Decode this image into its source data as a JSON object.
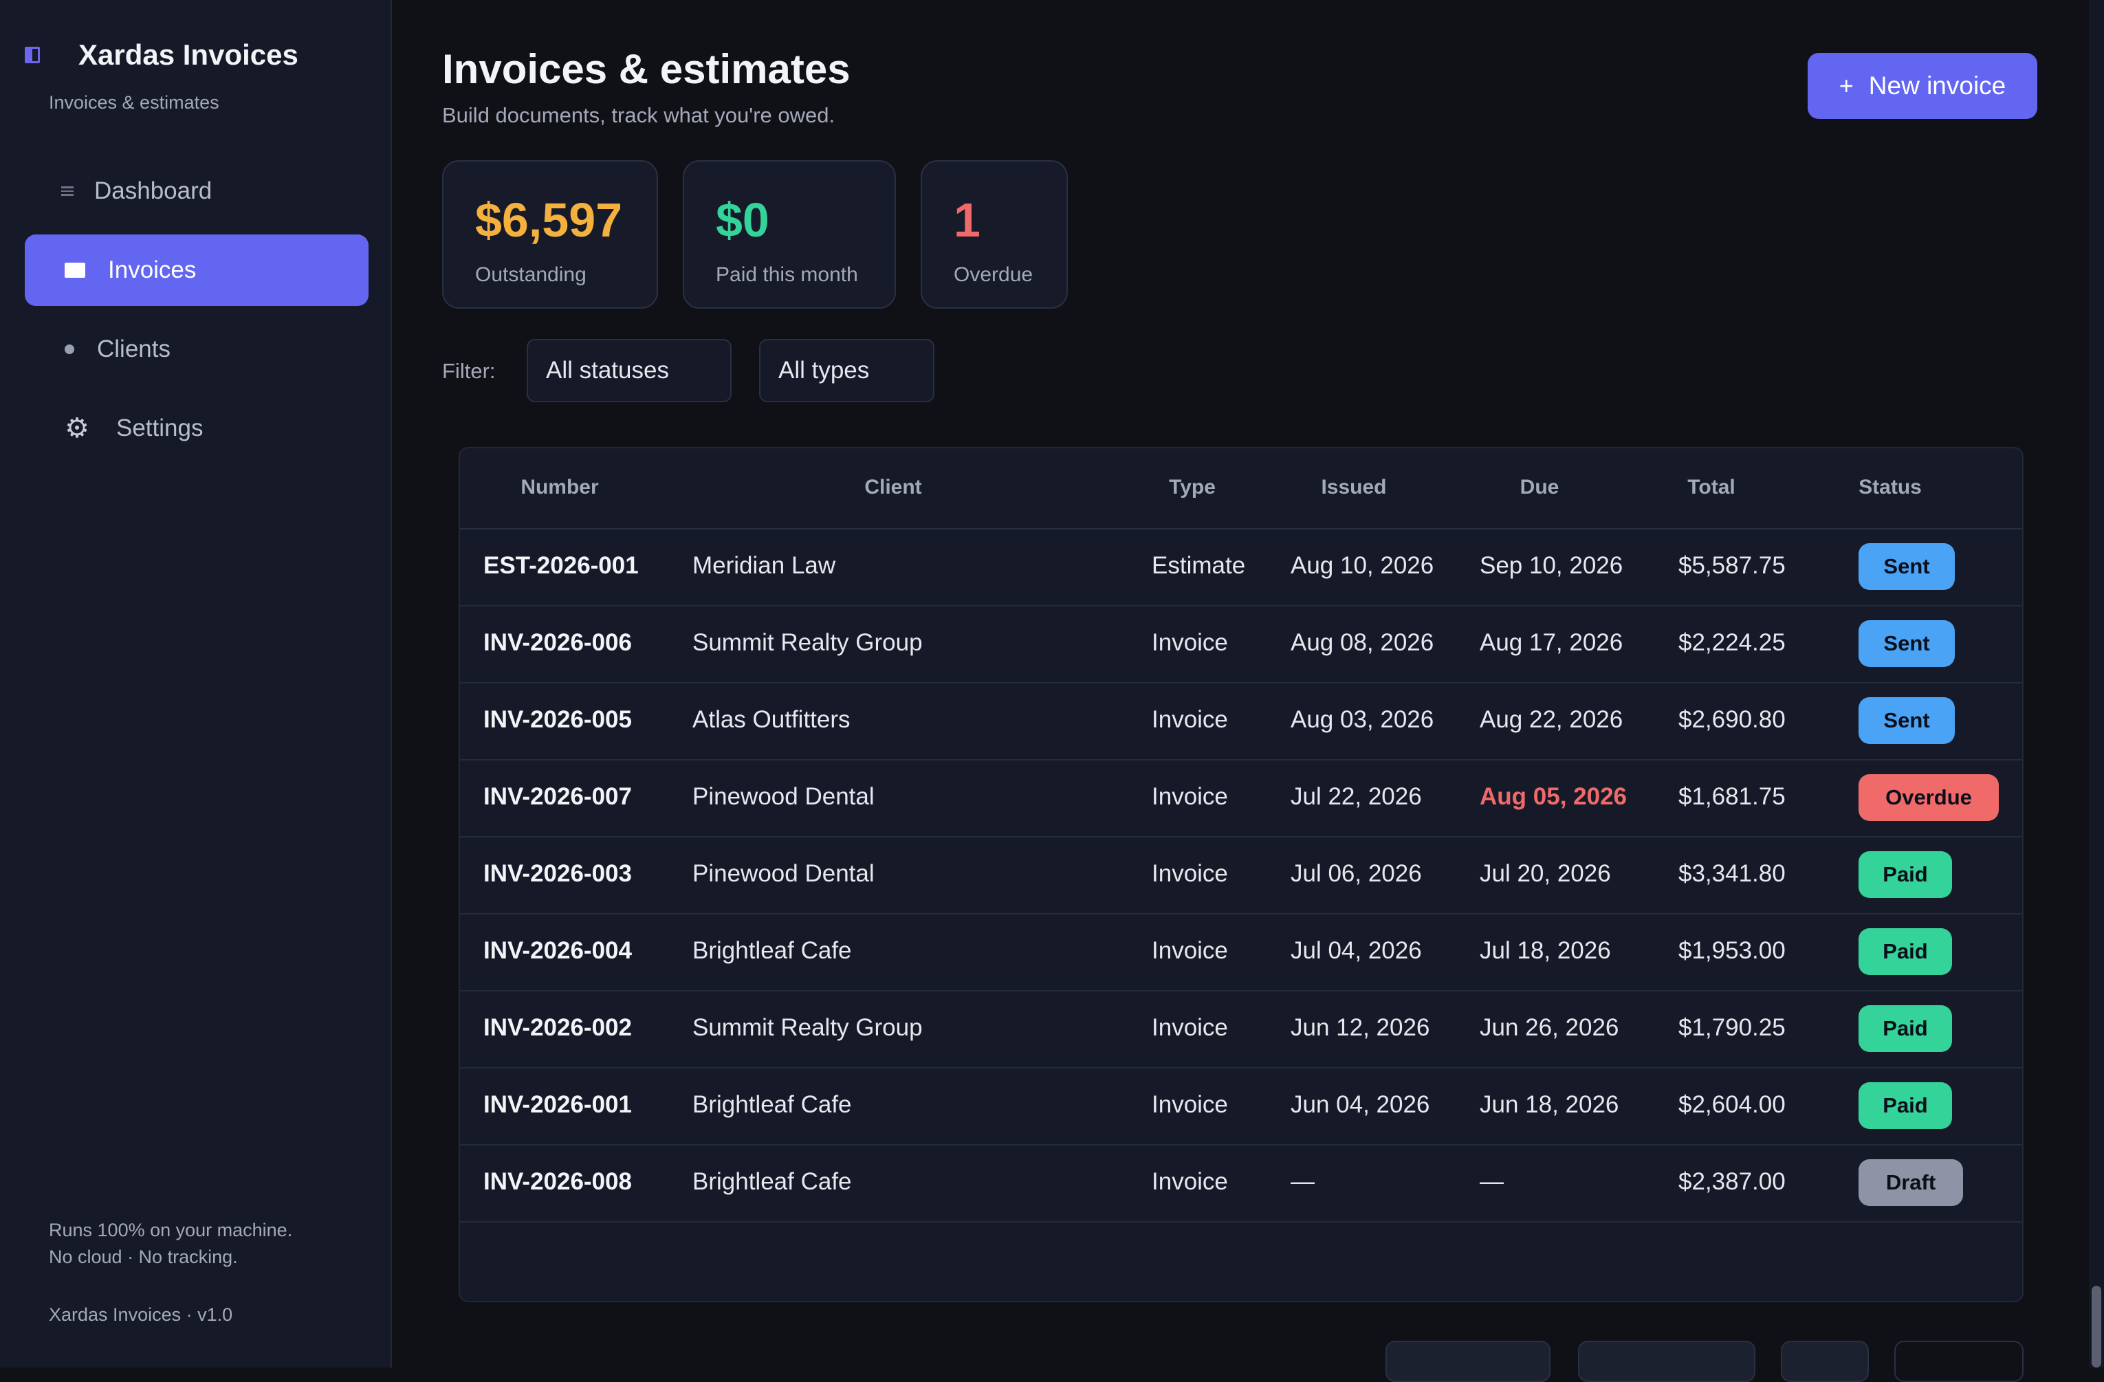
{
  "app": {
    "title": "Xardas Invoices",
    "subtitle": "Invoices & estimates",
    "accent": "#6366f1"
  },
  "sidebar": {
    "items": [
      {
        "label": "Dashboard",
        "icon": "dashboard-icon",
        "active": false
      },
      {
        "label": "Invoices",
        "icon": "invoice-icon",
        "active": true
      },
      {
        "label": "Clients",
        "icon": "clients-icon",
        "active": false
      },
      {
        "label": "Settings",
        "icon": "gear-icon",
        "active": false
      }
    ],
    "footer_line1": "Runs 100% on your machine.",
    "footer_line2": "No cloud · No tracking.",
    "version": "Xardas Invoices · v1.0"
  },
  "header": {
    "title": "Invoices & estimates",
    "subtitle": "Build documents, track what you're owed.",
    "new_button": "New invoice",
    "new_button_icon": "+"
  },
  "stats": [
    {
      "value": "$6,597",
      "label": "Outstanding",
      "color": "#f5b13d"
    },
    {
      "value": "$0",
      "label": "Paid this month",
      "color": "#34d399"
    },
    {
      "value": "1",
      "label": "Overdue",
      "color": "#f06a6a"
    }
  ],
  "filters": {
    "label": "Filter:",
    "status": "All statuses",
    "type": "All types"
  },
  "table": {
    "columns": [
      "Number",
      "Client",
      "Type",
      "Issued",
      "Due",
      "Total",
      "Status"
    ],
    "rows": [
      {
        "number": "EST-2026-001",
        "client": "Meridian Law",
        "type": "Estimate",
        "issued": "Aug 10, 2026",
        "due": "Sep 10, 2026",
        "total": "$5,587.75",
        "status": "Sent",
        "overdue": false
      },
      {
        "number": "INV-2026-006",
        "client": "Summit Realty Group",
        "type": "Invoice",
        "issued": "Aug 08, 2026",
        "due": "Aug 17, 2026",
        "total": "$2,224.25",
        "status": "Sent",
        "overdue": false
      },
      {
        "number": "INV-2026-005",
        "client": "Atlas Outfitters",
        "type": "Invoice",
        "issued": "Aug 03, 2026",
        "due": "Aug 22, 2026",
        "total": "$2,690.80",
        "status": "Sent",
        "overdue": false
      },
      {
        "number": "INV-2026-007",
        "client": "Pinewood Dental",
        "type": "Invoice",
        "issued": "Jul 22, 2026",
        "due": "Aug 05, 2026",
        "total": "$1,681.75",
        "status": "Overdue",
        "overdue": true
      },
      {
        "number": "INV-2026-003",
        "client": "Pinewood Dental",
        "type": "Invoice",
        "issued": "Jul 06, 2026",
        "due": "Jul 20, 2026",
        "total": "$3,341.80",
        "status": "Paid",
        "overdue": false
      },
      {
        "number": "INV-2026-004",
        "client": "Brightleaf Cafe",
        "type": "Invoice",
        "issued": "Jul 04, 2026",
        "due": "Jul 18, 2026",
        "total": "$1,953.00",
        "status": "Paid",
        "overdue": false
      },
      {
        "number": "INV-2026-002",
        "client": "Summit Realty Group",
        "type": "Invoice",
        "issued": "Jun 12, 2026",
        "due": "Jun 26, 2026",
        "total": "$1,790.25",
        "status": "Paid",
        "overdue": false
      },
      {
        "number": "INV-2026-001",
        "client": "Brightleaf Cafe",
        "type": "Invoice",
        "issued": "Jun 04, 2026",
        "due": "Jun 18, 2026",
        "total": "$2,604.00",
        "status": "Paid",
        "overdue": false
      },
      {
        "number": "INV-2026-008",
        "client": "Brightleaf Cafe",
        "type": "Invoice",
        "issued": "—",
        "due": "—",
        "total": "$2,387.00",
        "status": "Draft",
        "overdue": false
      }
    ]
  },
  "status_colors": {
    "Sent": "#4aa3f5",
    "Overdue": "#f06a6a",
    "Paid": "#34d399",
    "Draft": "#8e94a6"
  }
}
